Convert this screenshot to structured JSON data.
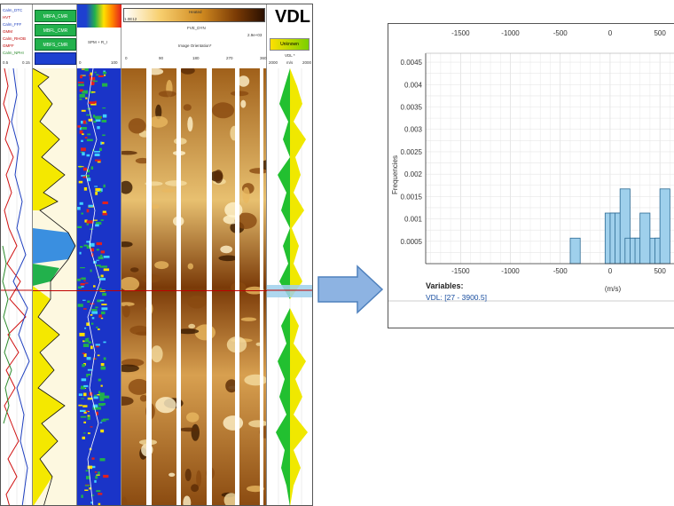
{
  "log_panel": {
    "vdl_title": "VDL",
    "curve_labels": [
      {
        "text": "Calm_DTC",
        "color": "#1f3fbf"
      },
      {
        "text": "HVT",
        "color": "#c00000"
      },
      {
        "text": "Calm_FFF",
        "color": "#1f3fbf"
      },
      {
        "text": "GMM",
        "color": "#c00000"
      },
      {
        "text": "Calm_RHOB",
        "color": "#c00000"
      },
      {
        "text": "GMFF",
        "color": "#c00000"
      },
      {
        "text": "Calm_NPHI",
        "color": "#2a8a2a"
      }
    ],
    "facies_boxes": [
      "MBFA_CMR",
      "MBFL_CMR",
      "MBFS_CMR"
    ],
    "image_header": {
      "top_label": "Heated",
      "sub_label": "FVE_DYN",
      "orientation_label": "Image Orientation*",
      "scale_low": "1.0E12",
      "scale_high": "2.9e+03",
      "ticks": [
        "0",
        "90",
        "180",
        "270",
        "360"
      ]
    },
    "vdl_track_header": {
      "scale_label": "VDL *",
      "left": "2000",
      "mid": "m/s",
      "right": "2000",
      "box_label": "Unknown"
    },
    "track2_label": "SPM + R_I",
    "track2_ticks": [
      "0",
      "100"
    ],
    "depth_scale": [
      "0.5",
      "0.15"
    ]
  },
  "histogram": {
    "top_ticks": [
      "-1500",
      "-1000",
      "-500",
      "0",
      "500"
    ],
    "bottom_ticks": [
      "-1500",
      "-1000",
      "-500",
      "0",
      "500"
    ],
    "y_ticks": [
      "0.0045",
      "0.004",
      "0.0035",
      "0.003",
      "0.0025",
      "0.002",
      "0.0015",
      "0.001",
      "0.0005"
    ],
    "xlabel": "(m/s)",
    "ylabel": "Frequencies",
    "variables_title": "Variables:",
    "variables_value": "VDL: [27 - 3900.5]"
  },
  "chart_data": {
    "type": "bar",
    "bar_width": 100,
    "x": [
      -350,
      0,
      50,
      100,
      150,
      200,
      250,
      300,
      350,
      450,
      500,
      550
    ],
    "values": [
      0.00057,
      0.00113,
      0.00113,
      0.00113,
      0.00167,
      0.00057,
      0.00057,
      0.00057,
      0.00113,
      0.00057,
      0.00057,
      0.00167
    ],
    "xlim": [
      -1850,
      650
    ],
    "ylim": [
      0,
      0.0047
    ],
    "xlabel": "(m/s)",
    "ylabel": "Frequencies",
    "grid": true,
    "colors": {
      "bar_fill": "#9fd0ec",
      "bar_stroke": "#2c6a93"
    }
  },
  "arrow": {
    "color": "#8db3e2",
    "stroke": "#4f81bd"
  }
}
